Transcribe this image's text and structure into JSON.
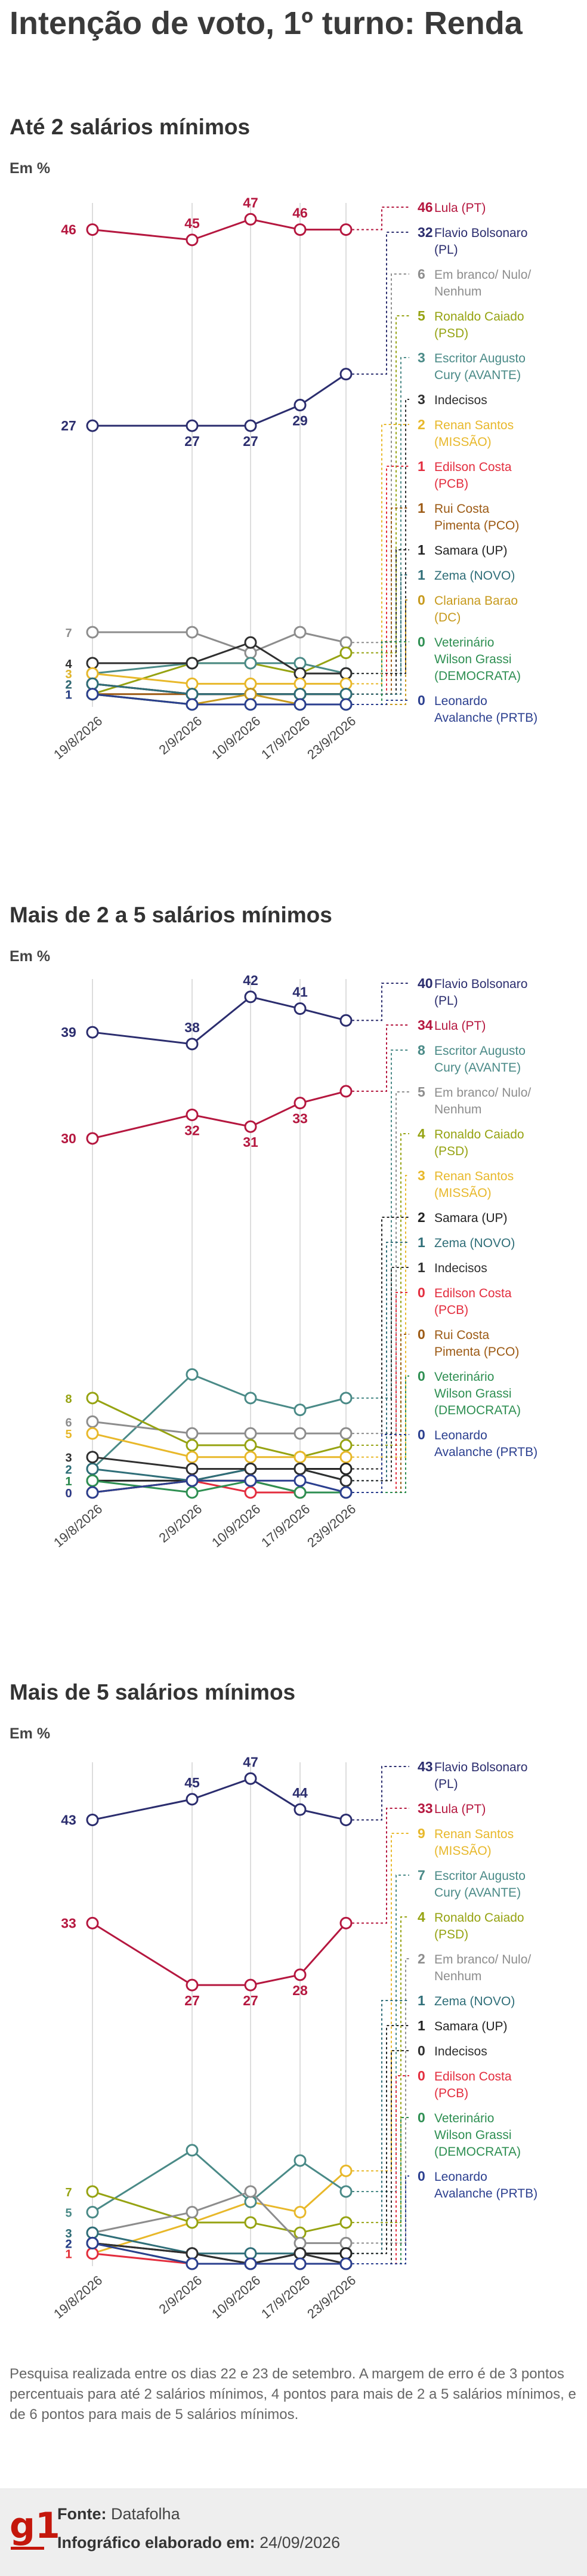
{
  "title": "Intenção de voto, 1º turno: Renda",
  "unit": "Em %",
  "colors": {
    "lula": "#b5173f",
    "flavio": "#2b2d6e",
    "branco": "#8d8d8d",
    "caiado": "#96a312",
    "cury": "#4a8a87",
    "indecisos": "#2f2f2f",
    "renan": "#e8b82a",
    "edilson": "#e32d3e",
    "rui": "#9c5a14",
    "samara": "#222222",
    "zema": "#2f6e78",
    "clariana": "#c79a1d",
    "wilson": "#2e8f52",
    "leonardo": "#2b3f8f",
    "grid": "#dddddd"
  },
  "chart_data": [
    {
      "type": "line",
      "title": "Até 2 salários mínimos",
      "x": [
        "19/8/2026",
        "2/9/2026",
        "10/9/2026",
        "17/9/2026",
        "23/9/2026"
      ],
      "series": [
        {
          "name": "Lula (PT)",
          "color_key": "lula",
          "values": [
            46,
            45,
            47,
            46,
            46
          ]
        },
        {
          "name": "Flavio Bolsonaro (PL)",
          "color_key": "flavio",
          "values": [
            27,
            27,
            27,
            29,
            32
          ]
        },
        {
          "name": "Em branco/ Nulo/ Nenhum",
          "color_key": "branco",
          "values": [
            7,
            7,
            5,
            7,
            6
          ]
        },
        {
          "name": "Ronaldo Caiado (PSD)",
          "color_key": "caiado",
          "values": [
            1,
            4,
            4,
            3,
            5
          ]
        },
        {
          "name": "Escritor Augusto Cury (AVANTE)",
          "color_key": "cury",
          "values": [
            3,
            4,
            4,
            4,
            3
          ]
        },
        {
          "name": "Indecisos",
          "color_key": "indecisos",
          "values": [
            4,
            4,
            6,
            3,
            3
          ]
        },
        {
          "name": "Renan Santos (MISSÃO)",
          "color_key": "renan",
          "values": [
            3,
            2,
            2,
            2,
            2
          ]
        },
        {
          "name": "Edilson Costa (PCB)",
          "color_key": "edilson",
          "values": [
            2,
            1,
            1,
            1,
            1
          ]
        },
        {
          "name": "Rui Costa Pimenta (PCO)",
          "color_key": "rui",
          "values": [
            1,
            1,
            1,
            1,
            1
          ]
        },
        {
          "name": "Samara (UP)",
          "color_key": "samara",
          "values": [
            2,
            1,
            1,
            1,
            1
          ]
        },
        {
          "name": "Zema (NOVO)",
          "color_key": "zema",
          "values": [
            2,
            1,
            1,
            1,
            1
          ]
        },
        {
          "name": "Clariana Barao (DC)",
          "color_key": "clariana",
          "values": [
            1,
            0,
            1,
            0,
            0
          ]
        },
        {
          "name": "Veterinário Wilson Grassi (DEMOCRATA)",
          "color_key": "wilson",
          "values": [
            1,
            0,
            0,
            0,
            0
          ]
        },
        {
          "name": "Leonardo Avalanche (PRTB)",
          "color_key": "leonardo",
          "values": [
            1,
            0,
            0,
            0,
            0
          ]
        }
      ]
    },
    {
      "type": "line",
      "title": "Mais de 2 a 5 salários mínimos",
      "x": [
        "19/8/2026",
        "2/9/2026",
        "10/9/2026",
        "17/9/2026",
        "23/9/2026"
      ],
      "series": [
        {
          "name": "Flavio Bolsonaro (PL)",
          "color_key": "flavio",
          "values": [
            39,
            38,
            42,
            41,
            40
          ]
        },
        {
          "name": "Lula (PT)",
          "color_key": "lula",
          "values": [
            30,
            32,
            31,
            33,
            34
          ]
        },
        {
          "name": "Escritor Augusto Cury (AVANTE)",
          "color_key": "cury",
          "values": [
            2,
            10,
            8,
            7,
            8
          ]
        },
        {
          "name": "Em branco/ Nulo/ Nenhum",
          "color_key": "branco",
          "values": [
            6,
            5,
            5,
            5,
            5
          ]
        },
        {
          "name": "Ronaldo Caiado (PSD)",
          "color_key": "caiado",
          "values": [
            8,
            4,
            4,
            3,
            4
          ]
        },
        {
          "name": "Renan Santos (MISSÃO)",
          "color_key": "renan",
          "values": [
            5,
            3,
            3,
            3,
            3
          ]
        },
        {
          "name": "Samara (UP)",
          "color_key": "samara",
          "values": [
            1,
            1,
            2,
            2,
            2
          ]
        },
        {
          "name": "Zema (NOVO)",
          "color_key": "zema",
          "values": [
            2,
            1,
            2,
            2,
            1
          ]
        },
        {
          "name": "Indecisos",
          "color_key": "indecisos",
          "values": [
            3,
            2,
            2,
            2,
            1
          ]
        },
        {
          "name": "Edilson Costa (PCB)",
          "color_key": "edilson",
          "values": [
            0,
            1,
            0,
            0,
            0
          ]
        },
        {
          "name": "Rui Costa Pimenta (PCO)",
          "color_key": "rui",
          "values": [
            0,
            1,
            1,
            0,
            0
          ]
        },
        {
          "name": "Veterinário Wilson Grassi (DEMOCRATA)",
          "color_key": "wilson",
          "values": [
            1,
            0,
            1,
            0,
            0
          ]
        },
        {
          "name": "Leonardo Avalanche (PRTB)",
          "color_key": "leonardo",
          "values": [
            0,
            1,
            1,
            1,
            0
          ]
        }
      ]
    },
    {
      "type": "line",
      "title": "Mais de 5 salários mínimos",
      "x": [
        "19/8/2026",
        "2/9/2026",
        "10/9/2026",
        "17/9/2026",
        "23/9/2026"
      ],
      "series": [
        {
          "name": "Flavio Bolsonaro (PL)",
          "color_key": "flavio",
          "values": [
            43,
            45,
            47,
            44,
            43
          ]
        },
        {
          "name": "Lula (PT)",
          "color_key": "lula",
          "values": [
            33,
            27,
            27,
            28,
            33
          ]
        },
        {
          "name": "Renan Santos (MISSÃO)",
          "color_key": "renan",
          "values": [
            1,
            4,
            6,
            5,
            9
          ]
        },
        {
          "name": "Escritor Augusto Cury (AVANTE)",
          "color_key": "cury",
          "values": [
            5,
            11,
            6,
            10,
            7
          ]
        },
        {
          "name": "Ronaldo Caiado (PSD)",
          "color_key": "caiado",
          "values": [
            7,
            4,
            4,
            3,
            4
          ]
        },
        {
          "name": "Em branco/ Nulo/ Nenhum",
          "color_key": "branco",
          "values": [
            3,
            5,
            7,
            2,
            2
          ]
        },
        {
          "name": "Zema (NOVO)",
          "color_key": "zema",
          "values": [
            3,
            1,
            1,
            1,
            1
          ]
        },
        {
          "name": "Samara (UP)",
          "color_key": "samara",
          "values": [
            2,
            1,
            0,
            1,
            1
          ]
        },
        {
          "name": "Indecisos",
          "color_key": "indecisos",
          "values": [
            2,
            1,
            0,
            1,
            0
          ]
        },
        {
          "name": "Edilson Costa (PCB)",
          "color_key": "edilson",
          "values": [
            1,
            0,
            0,
            0,
            0
          ]
        },
        {
          "name": "Veterinário Wilson Grassi (DEMOCRATA)",
          "color_key": "wilson",
          "values": [
            2,
            0,
            0,
            0,
            0
          ]
        },
        {
          "name": "Leonardo Avalanche (PRTB)",
          "color_key": "leonardo",
          "values": [
            2,
            0,
            0,
            0,
            0
          ]
        }
      ]
    }
  ],
  "footnote": "Pesquisa realizada entre os dias 22 e 23 de setembro. A margem de erro é de 3 pontos percentuais para até 2 salários mínimos, 4 pontos para mais de 2 a 5 salários mínimos, e de 6 pontos para mais de 5 salários mínimos.",
  "footer": {
    "logo": "g1",
    "source_label": "Fonte:",
    "source_value": "Datafolha",
    "credit_label": "Infográfico elaborado em:",
    "credit_value": "24/09/2026"
  }
}
